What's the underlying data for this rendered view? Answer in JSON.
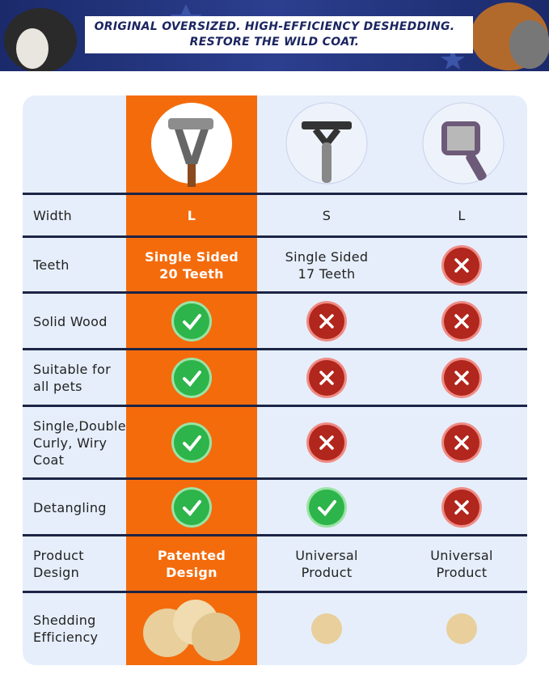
{
  "banner": {
    "lines": [
      "ORIGINAL OVERSIZED. HIGH-EFFICIENCY DESHEDDING.",
      "RESTORE THE WILD COAT."
    ]
  },
  "table": {
    "rows": [
      {
        "label": [
          "Width"
        ],
        "cells": [
          [
            "L"
          ],
          [
            "S"
          ],
          [
            "L"
          ]
        ]
      },
      {
        "label": [
          "Teeth"
        ],
        "cells": [
          [
            "Single Sided",
            "20 Teeth"
          ],
          [
            "Single Sided",
            "17 Teeth"
          ],
          false
        ]
      },
      {
        "label": [
          "Solid Wood"
        ],
        "cells": [
          true,
          false,
          false
        ]
      },
      {
        "label": [
          "Suitable for",
          "all pets"
        ],
        "cells": [
          true,
          false,
          false
        ]
      },
      {
        "label": [
          "Single,Double",
          "Curly, Wiry",
          "Coat"
        ],
        "cells": [
          true,
          false,
          false
        ]
      },
      {
        "label": [
          "Detangling"
        ],
        "cells": [
          true,
          true,
          false
        ]
      },
      {
        "label": [
          "Product",
          "Design"
        ],
        "cells": [
          [
            "Patented",
            "Design"
          ],
          [
            "Universal",
            "Product"
          ],
          [
            "Universal",
            "Product"
          ]
        ]
      },
      {
        "label": [
          "Shedding",
          "Efficiency"
        ]
      }
    ]
  }
}
